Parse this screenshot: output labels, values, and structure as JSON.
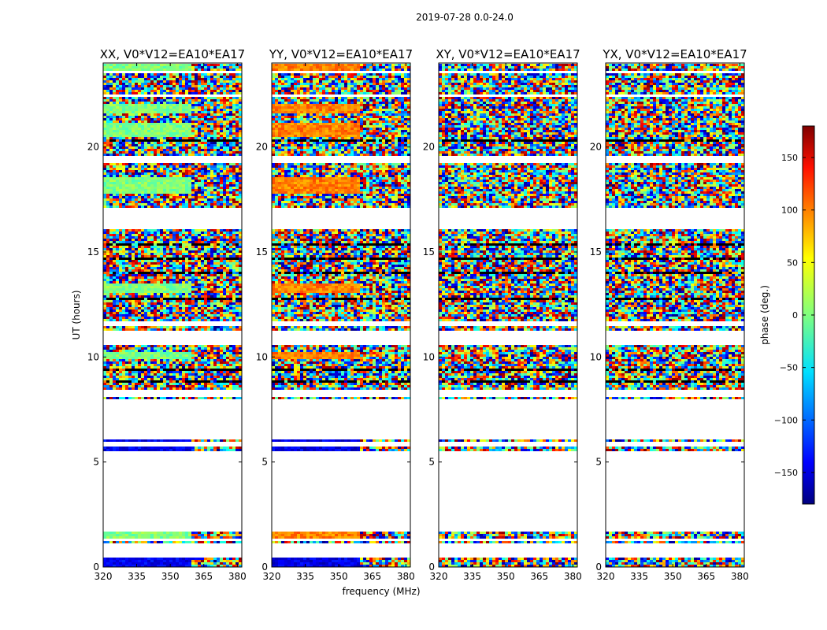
{
  "chart_data": {
    "type": "heatmap",
    "suptitle": "2019-07-28 0.0-24.0",
    "xlabel": "frequency (MHz)",
    "ylabel": "UT (hours)",
    "xlim": [
      320,
      382
    ],
    "ylim": [
      0,
      24
    ],
    "xticks": [
      320,
      335,
      350,
      365,
      380
    ],
    "yticks": [
      0,
      5,
      10,
      15,
      20
    ],
    "colorbar": {
      "label": "phase (deg.)",
      "colormap": "jet",
      "range": [
        -180,
        180
      ],
      "ticks": [
        150,
        100,
        50,
        0,
        -50,
        -100,
        -150
      ],
      "tick_labels": [
        "150",
        "100",
        "50",
        "0",
        "−50",
        "−100",
        "−150"
      ]
    },
    "panels": [
      {
        "title": "XX, V0*V12=EA10*EA17",
        "pol": "XX",
        "base_phase": 0,
        "base_phase_alt": -140
      },
      {
        "title": "YY, V0*V12=EA10*EA17",
        "pol": "YY",
        "base_phase": 90,
        "base_phase_alt": -145
      },
      {
        "title": "XY, V0*V12=EA10*EA17",
        "pol": "XY",
        "base_phase": null,
        "base_phase_alt": null
      },
      {
        "title": "YX, V0*V12=EA10*EA17",
        "pol": "YX",
        "base_phase": null,
        "base_phase_alt": null
      }
    ],
    "data_intervals_hours": [
      [
        0.0,
        0.45
      ],
      [
        1.1,
        1.2
      ],
      [
        1.35,
        1.65
      ],
      [
        5.5,
        5.75
      ],
      [
        6.0,
        6.1
      ],
      [
        7.95,
        8.1
      ],
      [
        8.45,
        10.6
      ],
      [
        11.3,
        11.45
      ],
      [
        11.7,
        16.1
      ],
      [
        17.15,
        19.25
      ],
      [
        19.6,
        22.35
      ],
      [
        22.45,
        23.15
      ],
      [
        23.2,
        23.5
      ],
      [
        23.6,
        24.0
      ]
    ],
    "flagged_intervals_hours": [
      [
        9.3,
        9.45
      ],
      [
        8.75,
        8.85
      ],
      [
        12.75,
        12.85
      ],
      [
        14.0,
        14.1
      ],
      [
        14.6,
        14.7
      ],
      [
        15.35,
        15.45
      ],
      [
        17.3,
        17.35
      ],
      [
        20.25,
        20.35
      ],
      [
        20.9,
        20.95
      ],
      [
        21.9,
        21.95
      ]
    ],
    "coherent_phase_intervals_hours": [
      [
        0.0,
        0.45
      ],
      [
        1.35,
        1.65
      ],
      [
        5.5,
        5.75
      ],
      [
        6.0,
        6.1
      ],
      [
        9.9,
        10.2
      ],
      [
        13.0,
        13.5
      ],
      [
        17.8,
        18.6
      ],
      [
        20.5,
        21.2
      ],
      [
        21.6,
        22.1
      ],
      [
        23.5,
        24.0
      ]
    ],
    "coherent_phase_freq_cutoff_mhz": 359
  }
}
